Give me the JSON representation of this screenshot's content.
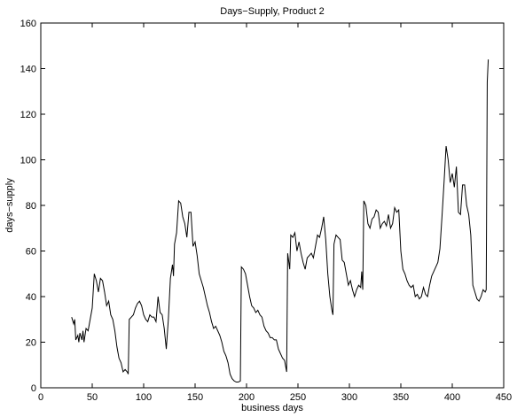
{
  "chart_data": {
    "type": "line",
    "title": "Days−Supply, Product 2",
    "xlabel": "business days",
    "ylabel": "days−supply",
    "xlim": [
      0,
      450
    ],
    "ylim": [
      0,
      160
    ],
    "xticks": [
      0,
      50,
      100,
      150,
      200,
      250,
      300,
      350,
      400,
      450
    ],
    "yticks": [
      0,
      20,
      40,
      60,
      80,
      100,
      120,
      140,
      160
    ],
    "x": [
      30,
      32,
      33,
      34,
      36,
      37,
      38,
      40,
      41,
      42,
      44,
      46,
      48,
      50,
      52,
      54,
      56,
      58,
      60,
      62,
      64,
      66,
      68,
      70,
      72,
      74,
      76,
      78,
      80,
      82,
      84,
      85,
      86,
      88,
      90,
      92,
      94,
      96,
      98,
      100,
      102,
      104,
      106,
      108,
      110,
      112,
      114,
      116,
      118,
      120,
      122,
      124,
      126,
      128,
      129,
      130,
      132,
      134,
      136,
      138,
      140,
      142,
      144,
      146,
      148,
      150,
      152,
      154,
      156,
      158,
      160,
      162,
      164,
      166,
      168,
      170,
      172,
      174,
      176,
      178,
      180,
      182,
      184,
      186,
      188,
      190,
      192,
      194,
      195,
      197,
      199,
      201,
      203,
      205,
      207,
      209,
      211,
      213,
      215,
      217,
      219,
      221,
      223,
      225,
      227,
      229,
      231,
      233,
      235,
      237,
      239,
      240,
      242,
      243,
      245,
      247,
      249,
      251,
      253,
      255,
      257,
      259,
      261,
      263,
      265,
      267,
      269,
      271,
      273,
      275,
      277,
      279,
      281,
      283,
      284,
      285,
      287,
      289,
      291,
      293,
      295,
      297,
      299,
      301,
      303,
      305,
      307,
      309,
      311,
      312,
      313,
      314,
      316,
      318,
      320,
      322,
      324,
      326,
      328,
      330,
      332,
      334,
      336,
      338,
      340,
      342,
      344,
      346,
      348,
      350,
      352,
      354,
      356,
      358,
      360,
      362,
      364,
      366,
      368,
      370,
      372,
      374,
      376,
      378,
      380,
      382,
      384,
      386,
      388,
      390,
      392,
      394,
      396,
      398,
      400,
      402,
      404,
      406,
      408,
      410,
      412,
      414,
      416,
      418,
      420,
      422,
      424,
      426,
      428,
      430,
      432,
      433,
      434,
      435
    ],
    "series": [
      {
        "color": "#000000",
        "values": [
          31,
          28,
          30,
          21,
          23,
          20,
          24,
          21,
          25,
          20,
          26,
          25,
          30,
          35,
          50,
          47,
          42,
          48,
          47,
          42,
          36,
          38,
          32,
          30,
          25,
          18,
          13,
          11,
          7,
          8,
          7,
          6,
          30,
          31,
          32,
          35,
          37,
          38,
          36,
          32,
          30,
          29,
          32,
          31,
          31,
          29,
          40,
          33,
          32,
          26,
          17,
          30,
          48,
          54,
          49,
          63,
          68,
          82,
          81,
          75,
          72,
          66,
          77,
          77,
          62,
          64,
          58,
          50,
          47,
          44,
          40,
          36,
          33,
          29,
          26,
          27,
          25,
          23,
          20,
          16,
          14,
          11,
          6,
          4,
          3,
          2.5,
          2.5,
          3,
          53,
          52,
          50,
          45,
          40,
          36,
          35,
          33,
          34,
          32,
          31,
          27,
          25,
          24,
          22,
          22,
          21,
          21,
          17,
          15,
          13,
          12,
          7,
          59,
          52,
          67,
          66,
          68,
          60,
          64,
          59,
          55,
          52,
          57,
          58,
          59,
          57,
          62,
          67,
          66,
          70,
          75,
          65,
          50,
          40,
          34,
          32,
          63,
          67,
          66,
          65,
          56,
          55,
          50,
          45,
          47,
          43,
          40,
          43,
          45,
          44,
          51,
          43,
          82,
          80,
          72,
          70,
          74,
          75,
          78,
          77,
          70,
          72,
          73,
          71,
          76,
          70,
          72,
          79,
          77,
          78,
          60,
          52,
          50,
          47,
          45,
          44,
          45,
          40,
          41,
          39,
          40,
          44,
          41,
          40,
          45,
          49,
          51,
          53,
          55,
          61,
          75,
          90,
          106,
          100,
          90,
          94,
          88,
          97,
          77,
          76,
          89,
          89,
          80,
          76,
          67,
          45,
          42,
          39,
          38,
          40,
          43,
          42,
          43,
          134,
          144
        ]
      }
    ]
  }
}
